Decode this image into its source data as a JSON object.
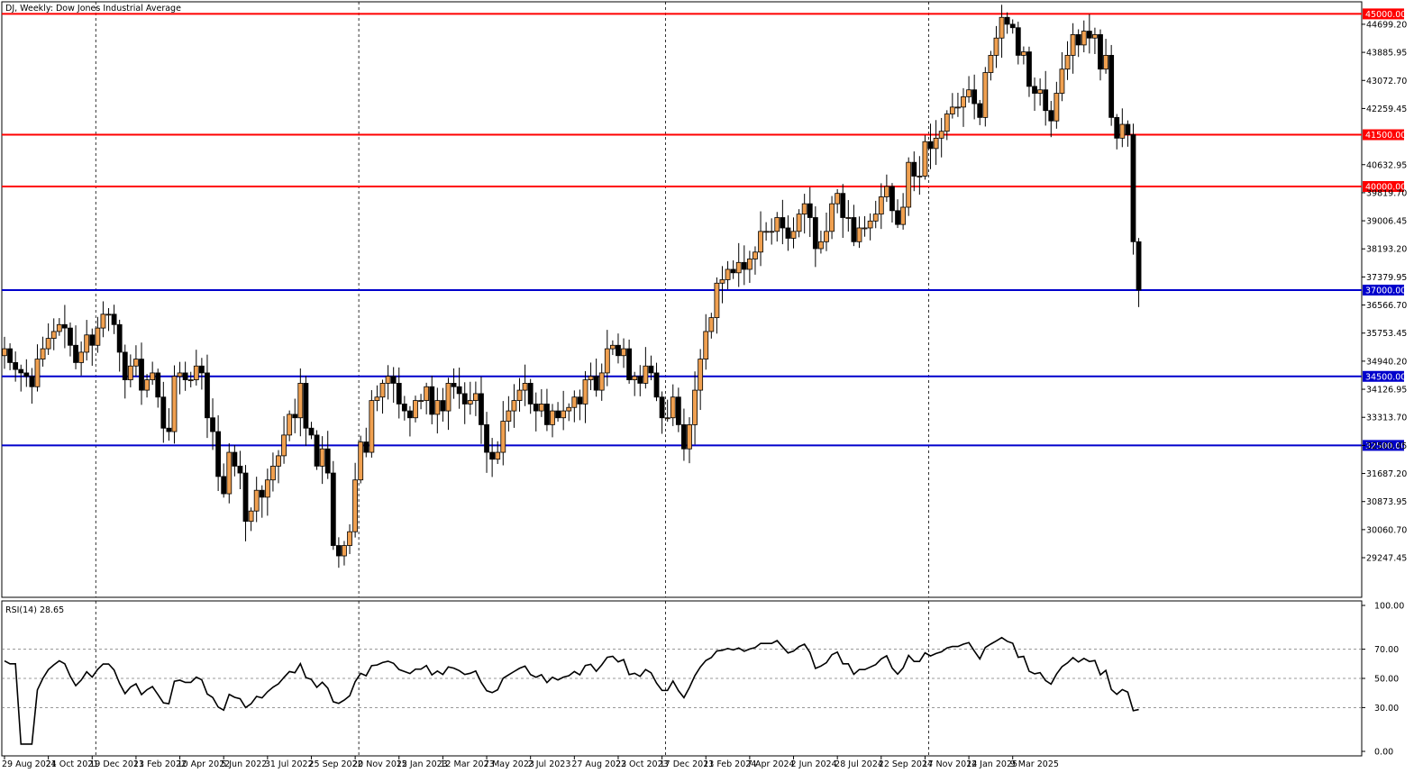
{
  "chart_title": "DJ, Weekly:  Dow Jones Industrial Average",
  "rsi_title": "RSI(14) 28.65",
  "colors": {
    "bull": "#f0a050",
    "bear": "#000000",
    "resistance": "#ff0000",
    "support": "#0000cc",
    "rsi_line": "#000000"
  },
  "chart_data": [
    {
      "type": "candlestick",
      "title": "DJ, Weekly:  Dow Jones Industrial Average",
      "y_ticks": [
        "44699.20",
        "43885.95",
        "43072.70",
        "42259.45",
        "40632.95",
        "39819.70",
        "39006.45",
        "38193.20",
        "37379.95",
        "36566.70",
        "35753.45",
        "34940.20",
        "34126.95",
        "33313.70",
        "32500.45",
        "31687.20",
        "30873.95",
        "30060.70",
        "29247.45"
      ],
      "x_ticks": [
        "29 Aug 2021",
        "24 Oct 2021",
        "19 Dec 2021",
        "13 Feb 2022",
        "10 Apr 2022",
        "5 Jun 2022",
        "31 Jul 2022",
        "25 Sep 2022",
        "20 Nov 2022",
        "15 Jan 2023",
        "12 Mar 2023",
        "7 May 2023",
        "2 Jul 2023",
        "27 Aug 2023",
        "22 Oct 2023",
        "17 Dec 2023",
        "11 Feb 2024",
        "7 Apr 2024",
        "2 Jun 2024",
        "28 Jul 2024",
        "22 Sep 2024",
        "17 Nov 2024",
        "12 Jan 2025",
        "9 Mar 2025"
      ],
      "ylim": [
        28100,
        45350
      ],
      "horizontal_levels": [
        {
          "value": 45000,
          "label": "45000.00",
          "kind": "resistance"
        },
        {
          "value": 41500,
          "label": "41500.00",
          "kind": "resistance"
        },
        {
          "value": 40000,
          "label": "40000.00",
          "kind": "resistance"
        },
        {
          "value": 37000,
          "label": "37000.00",
          "kind": "support"
        },
        {
          "value": 34500,
          "label": "34500.00",
          "kind": "support"
        },
        {
          "value": 32500,
          "label": "32500.00",
          "kind": "support"
        }
      ],
      "vertical_separators": [
        "19 Dec 2021",
        "20 Nov 2022",
        "17 Dec 2023",
        "17 Nov 2024"
      ],
      "closes": [
        35300,
        34900,
        34700,
        34600,
        34500,
        34200,
        35000,
        35300,
        35600,
        35800,
        36000,
        35900,
        35400,
        34900,
        35200,
        35700,
        35400,
        35900,
        36300,
        36300,
        36000,
        35200,
        34400,
        34800,
        35000,
        34100,
        34400,
        34600,
        33900,
        33000,
        32900,
        34500,
        34600,
        34400,
        34400,
        34800,
        34600,
        33300,
        32900,
        31600,
        31100,
        32300,
        31900,
        31700,
        30300,
        30600,
        31200,
        31000,
        31500,
        31900,
        32200,
        32800,
        33400,
        33300,
        34300,
        33000,
        32800,
        31900,
        32400,
        31700,
        29600,
        29300,
        29600,
        30000,
        31500,
        32600,
        32300,
        33800,
        33900,
        34300,
        34500,
        34300,
        33700,
        33500,
        33300,
        33800,
        33800,
        34200,
        33400,
        33800,
        33500,
        34300,
        34200,
        34000,
        33700,
        33800,
        34000,
        33100,
        32300,
        32100,
        32300,
        33200,
        33500,
        33800,
        34100,
        34300,
        33700,
        33500,
        33700,
        33100,
        33500,
        33300,
        33500,
        33600,
        33900,
        33700,
        34400,
        34500,
        34100,
        34600,
        35300,
        35400,
        35100,
        35300,
        34400,
        34500,
        34300,
        34800,
        34600,
        33900,
        33300,
        33300,
        33900,
        33100,
        32400,
        33100,
        34100,
        35000,
        35800,
        36200,
        37200,
        37300,
        37600,
        37500,
        37800,
        37600,
        37900,
        38100,
        38700,
        38700,
        38700,
        39100,
        38800,
        38500,
        38700,
        39200,
        39500,
        39100,
        38200,
        38400,
        38700,
        39500,
        39800,
        39100,
        39100,
        38400,
        38800,
        38800,
        39000,
        39200,
        39700,
        40000,
        39300,
        38900,
        39400,
        40700,
        40300,
        40300,
        41300,
        41100,
        41400,
        41600,
        42100,
        42300,
        42300,
        42600,
        42800,
        42400,
        42000,
        43300,
        43800,
        44300,
        44900,
        44700,
        44600,
        43800,
        43900,
        42900,
        42700,
        42800,
        42200,
        41900,
        42700,
        43400,
        43800,
        44400,
        44100,
        44500,
        44300,
        44400,
        43400,
        43800,
        42000,
        41400,
        41800,
        41500,
        38400,
        37000
      ],
      "rsi_ylim": [
        0,
        100
      ],
      "rsi_ticks": [
        "100.00",
        "70.00",
        "50.00",
        "30.00",
        "0.00"
      ],
      "rsi_levels": [
        70,
        50,
        30
      ],
      "rsi_last": 28.65
    }
  ]
}
